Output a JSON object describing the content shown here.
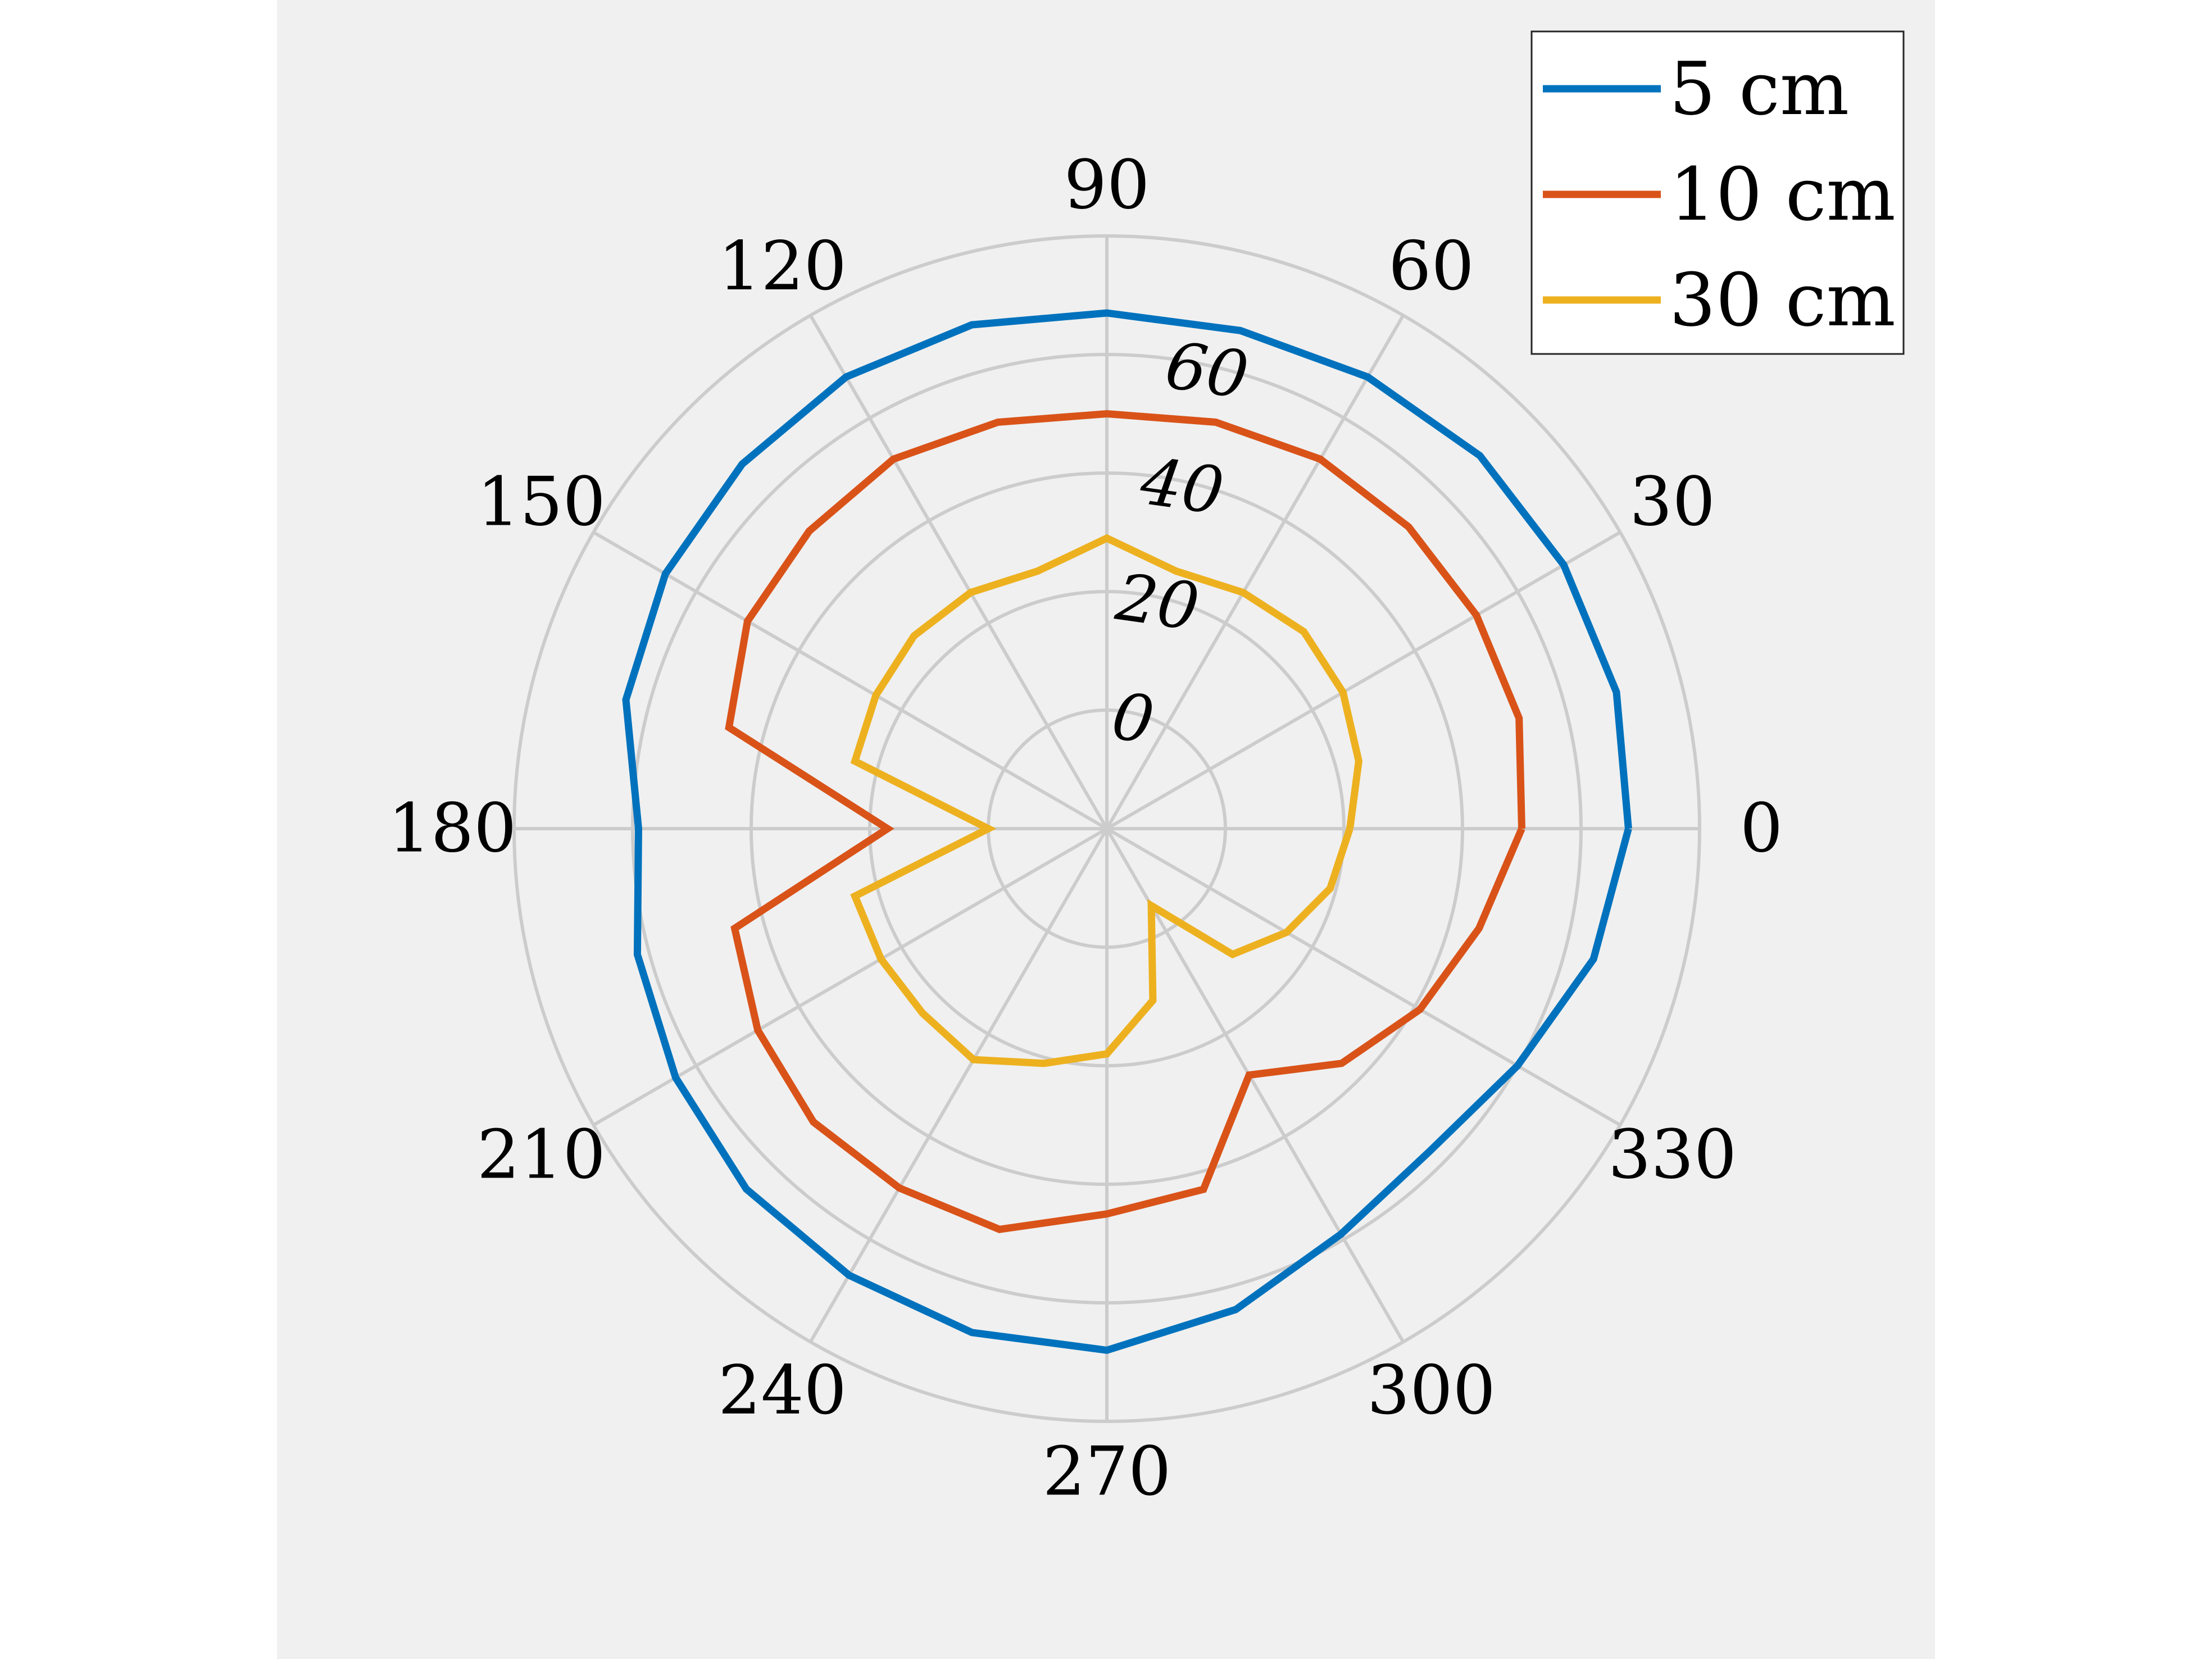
{
  "colors": {
    "panel_background": "#f0f0f0",
    "grid": "#cccccc",
    "text": "#000000"
  },
  "chart_data": {
    "type": "line",
    "projection": "polar",
    "title": "",
    "theta_unit": "degrees",
    "theta_ticks": [
      "0",
      "30",
      "60",
      "90",
      "120",
      "150",
      "180",
      "210",
      "240",
      "270",
      "300",
      "330"
    ],
    "r_ticks": [
      "0",
      "20",
      "40",
      "60"
    ],
    "rlim": [
      -20,
      80
    ],
    "grid": true,
    "legend_position": "top-right",
    "theta": [
      0,
      15,
      30,
      45,
      60,
      75,
      90,
      105,
      120,
      135,
      150,
      165,
      180,
      195,
      210,
      225,
      240,
      255,
      270,
      285,
      300,
      315,
      330,
      345,
      360
    ],
    "series": [
      {
        "name": "5 cm",
        "color": "#0072bd",
        "values": [
          68,
          69,
          69,
          69,
          68,
          67,
          67,
          68,
          68,
          67,
          66,
          64,
          59,
          62,
          64,
          66,
          67,
          68,
          68,
          64,
          59,
          57,
          60,
          65,
          68
        ]
      },
      {
        "name": "10 cm",
        "color": "#d95319",
        "values": [
          50,
          52,
          52,
          52,
          52,
          51,
          50,
          51,
          52,
          51,
          50,
          46,
          17,
          45,
          48,
          50,
          50,
          50,
          45,
          43,
          28,
          36,
          41,
          45,
          50
        ]
      },
      {
        "name": "30 cm",
        "color": "#edb120",
        "values": [
          21,
          24,
          26,
          27,
          26,
          25,
          29,
          25,
          26,
          26,
          25,
          24,
          0,
          24,
          24,
          24,
          25,
          21,
          18,
          10,
          -5,
          10,
          15,
          19,
          21
        ]
      }
    ]
  }
}
